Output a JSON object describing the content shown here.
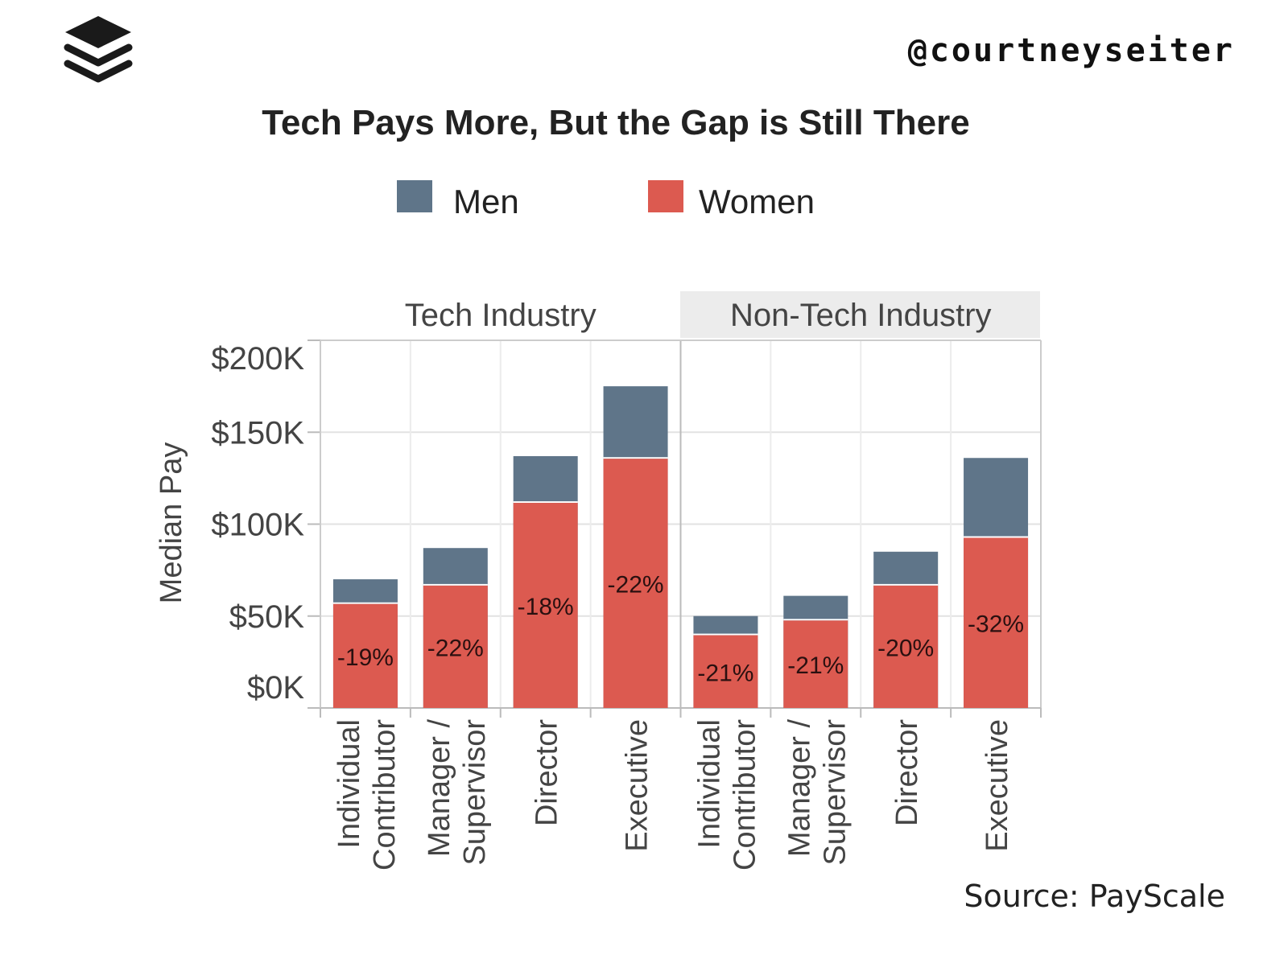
{
  "handle": "@courtneyseiter",
  "source": "Source: PayScale",
  "logo": "buffer-stack-logo",
  "chart_data": {
    "type": "bar",
    "title": "Tech Pays More, But the Gap is Still There",
    "ylabel": "Median Pay",
    "xlabel": "",
    "ylim": [
      0,
      200000
    ],
    "yticks": [
      "$0K",
      "$50K",
      "$100K",
      "$150K",
      "$200K"
    ],
    "ytick_values": [
      0,
      50000,
      100000,
      150000,
      200000
    ],
    "grid": true,
    "legend_position": "top",
    "panels": [
      "Tech Industry",
      "Non-Tech Industry"
    ],
    "categories": [
      [
        "Individual",
        "Contributor"
      ],
      [
        "Manager /",
        "Supervisor"
      ],
      [
        "Director"
      ],
      [
        "Executive"
      ]
    ],
    "colors": {
      "Men": "#5f7589",
      "Women": "#dc5a50"
    },
    "series": [
      {
        "name": "Men",
        "values": [
          [
            70000,
            87000,
            137000,
            175000
          ],
          [
            50000,
            61000,
            85000,
            136000
          ]
        ]
      },
      {
        "name": "Women",
        "values": [
          [
            57000,
            67000,
            112000,
            136000
          ],
          [
            40000,
            48000,
            67000,
            93000
          ]
        ]
      }
    ],
    "gap_labels": [
      [
        "-19%",
        "-22%",
        "-18%",
        "-22%"
      ],
      [
        "-21%",
        "-21%",
        "-20%",
        "-32%"
      ]
    ]
  }
}
